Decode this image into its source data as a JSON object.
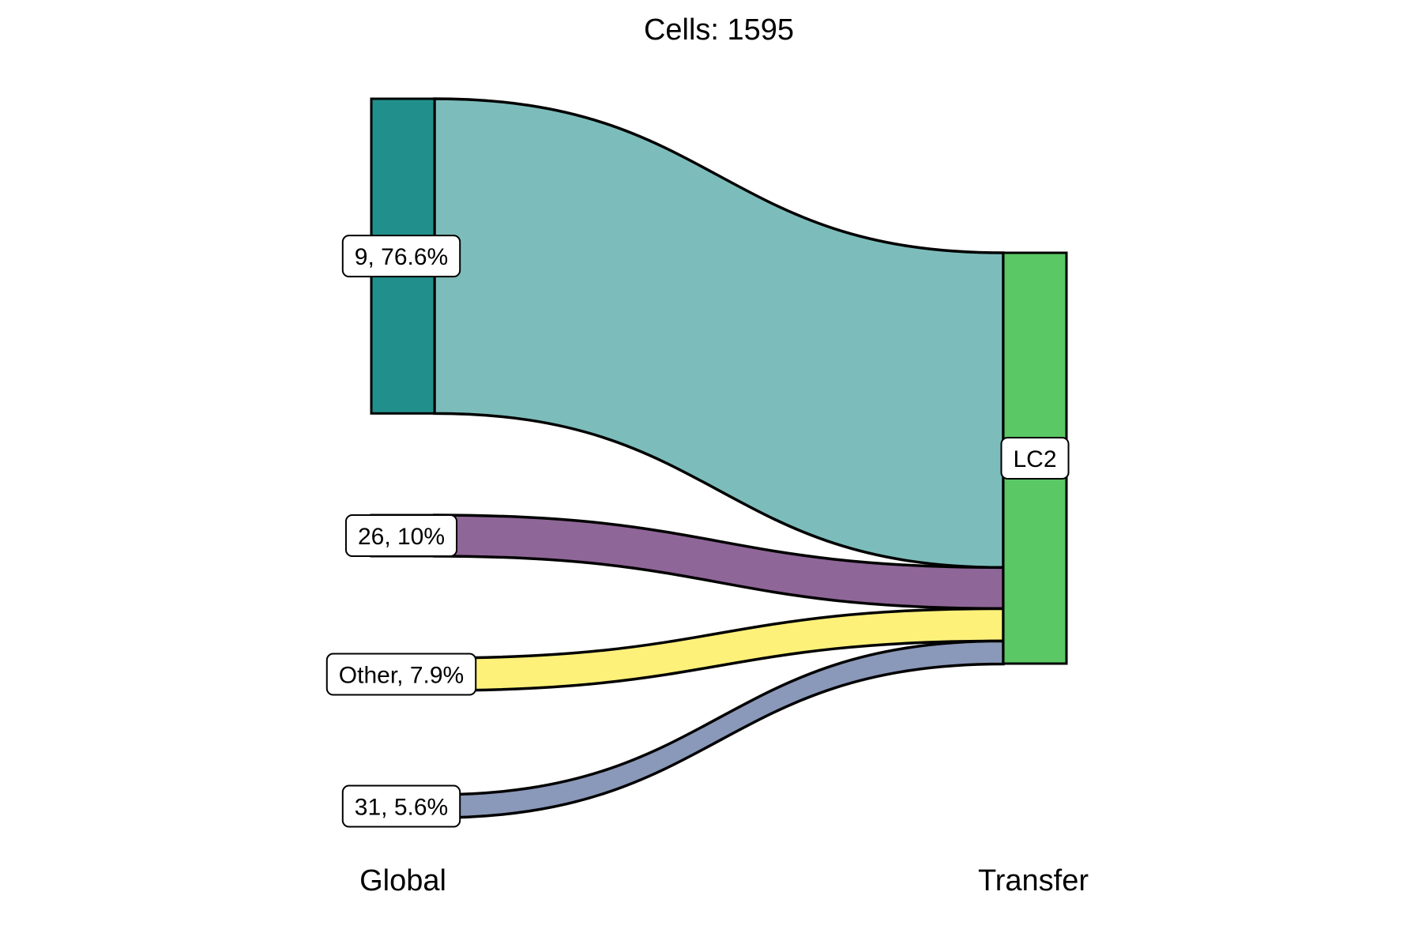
{
  "chart_data": {
    "type": "sankey",
    "title": "Cells:  1595",
    "axes": [
      "Global",
      "Transfer"
    ],
    "sources": [
      {
        "label": "9, 76.6%",
        "share": 76.6,
        "node_color": "#21908c",
        "flow_color": "#7cbdbb"
      },
      {
        "label": "26, 10%",
        "share": 10.0,
        "node_color": "#8f6698",
        "flow_color": "#8f6698"
      },
      {
        "label": "Other, 7.9%",
        "share": 7.9,
        "node_color": "#fdf17a",
        "flow_color": "#fdf17a"
      },
      {
        "label": "31, 5.6%",
        "share": 5.6,
        "node_color": "#8a98b9",
        "flow_color": "#8a98b9"
      }
    ],
    "targets": [
      {
        "label": "LC2",
        "share": 100.0,
        "node_color": "#5ac864"
      }
    ],
    "total_cells": 1595
  }
}
